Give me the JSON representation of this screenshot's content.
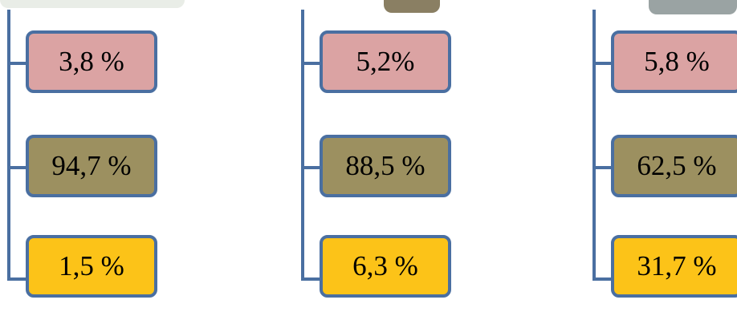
{
  "colors": {
    "connector": "#4a6fa1",
    "row1": "#dba3a3",
    "row2": "#9c9060",
    "row3": "#fcc318"
  },
  "trees": [
    {
      "values": [
        "3,8 %",
        "94,7 %",
        "1,5 %"
      ]
    },
    {
      "values": [
        "5,2%",
        "88,5 %",
        "6,3 %"
      ]
    },
    {
      "values": [
        "5,8 %",
        "62,5 %",
        "31,7 %"
      ]
    }
  ]
}
